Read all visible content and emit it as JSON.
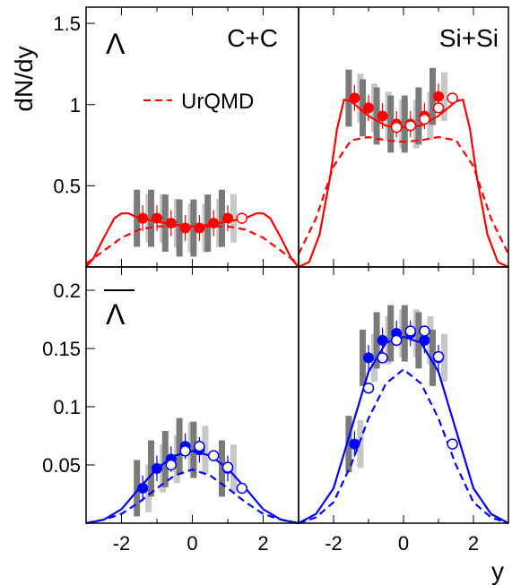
{
  "figure": {
    "y_axis_label": "dN/dy",
    "x_axis_label": "y",
    "panel_labels": {
      "cc": "C+C",
      "sisi": "Si+Si",
      "lambda": "Λ",
      "antilambda": "Λ",
      "legend_urqmd": "UrQMD"
    },
    "colors": {
      "lambda": "#ff0000",
      "antilambda": "#0000ff",
      "syst_dark": "#7a7a7a",
      "syst_light": "#c8c8c8"
    }
  },
  "chart_data": [
    {
      "id": "cc_lambda",
      "type": "scatter",
      "title": "C+C",
      "particle": "Lambda",
      "xlim": [
        -3,
        3
      ],
      "ylim": [
        0,
        1.6
      ],
      "yticks": [
        0.5,
        1,
        1.5
      ],
      "yticklabels": [
        "0.5",
        "1",
        "1.5"
      ],
      "filled": {
        "x": [
          -1.4,
          -1.0,
          -0.6,
          -0.2,
          0.2,
          0.6,
          1.0
        ],
        "y": [
          0.3,
          0.3,
          0.27,
          0.24,
          0.24,
          0.27,
          0.3
        ]
      },
      "open": {
        "x": [
          1.4
        ],
        "y": [
          0.3
        ]
      },
      "fit_solid": {
        "x": [
          -3.0,
          -2.8,
          -2.5,
          -2.2,
          -2.0,
          -1.8,
          -1.5,
          -1.0,
          -0.5,
          0.0,
          0.5,
          1.0,
          1.5,
          1.8,
          2.0,
          2.2,
          2.5,
          2.8,
          3.0
        ],
        "y": [
          0.0,
          0.05,
          0.18,
          0.3,
          0.33,
          0.33,
          0.3,
          0.28,
          0.26,
          0.25,
          0.26,
          0.28,
          0.3,
          0.33,
          0.33,
          0.3,
          0.18,
          0.05,
          0.0
        ]
      },
      "urqmd": {
        "x": [
          -3.0,
          -2.5,
          -2.0,
          -1.5,
          -1.0,
          -0.5,
          0.0,
          0.5,
          1.0,
          1.5,
          2.0,
          2.5,
          3.0
        ],
        "y": [
          0.02,
          0.1,
          0.18,
          0.23,
          0.25,
          0.25,
          0.25,
          0.25,
          0.25,
          0.23,
          0.18,
          0.1,
          0.02
        ]
      }
    },
    {
      "id": "sisi_lambda",
      "type": "scatter",
      "title": "Si+Si",
      "particle": "Lambda",
      "xlim": [
        -3,
        3
      ],
      "ylim": [
        0,
        1.6
      ],
      "filled": {
        "x": [
          -1.4,
          -1.0,
          -0.6,
          -0.2,
          0.2,
          0.6,
          1.0
        ],
        "y": [
          1.04,
          0.98,
          0.93,
          0.88,
          0.88,
          0.93,
          1.05
        ]
      },
      "open": {
        "x": [
          -0.2,
          0.2,
          0.6,
          1.0,
          1.4
        ],
        "y": [
          0.86,
          0.87,
          0.91,
          0.98,
          1.04
        ]
      },
      "fit_solid": {
        "x": [
          -3.0,
          -2.7,
          -2.4,
          -2.1,
          -1.9,
          -1.7,
          -1.5,
          -1.0,
          -0.5,
          0.0,
          0.5,
          1.0,
          1.5,
          1.7,
          1.9,
          2.1,
          2.4,
          2.7,
          3.0
        ],
        "y": [
          0.0,
          0.03,
          0.2,
          0.55,
          0.85,
          1.03,
          1.02,
          0.93,
          0.87,
          0.86,
          0.87,
          0.93,
          1.02,
          1.03,
          0.85,
          0.55,
          0.2,
          0.03,
          0.0
        ]
      },
      "urqmd": {
        "x": [
          -3.0,
          -2.5,
          -2.0,
          -1.5,
          -1.0,
          -0.5,
          0.0,
          0.5,
          1.0,
          1.5,
          2.0,
          2.5,
          3.0
        ],
        "y": [
          0.08,
          0.3,
          0.62,
          0.78,
          0.8,
          0.78,
          0.77,
          0.78,
          0.8,
          0.78,
          0.62,
          0.3,
          0.08
        ]
      }
    },
    {
      "id": "cc_antilambda",
      "type": "scatter",
      "title": "C+C",
      "particle": "anti-Lambda",
      "xlim": [
        -3,
        3
      ],
      "ylim": [
        0,
        0.22
      ],
      "yticks": [
        0.05,
        0.1,
        0.15,
        0.2
      ],
      "yticklabels": [
        "0.05",
        "0.1",
        "0.15",
        "0.2"
      ],
      "filled": {
        "x": [
          -1.4,
          -1.0,
          -0.6,
          -0.2,
          0.2,
          1.0
        ],
        "y": [
          0.03,
          0.047,
          0.055,
          0.066,
          0.063,
          0.047
        ]
      },
      "open": {
        "x": [
          -0.6,
          -0.2,
          0.2,
          0.6,
          1.0,
          1.4
        ],
        "y": [
          0.05,
          0.062,
          0.066,
          0.058,
          0.048,
          0.03
        ]
      },
      "fit_solid": {
        "x": [
          -3.0,
          -2.5,
          -2.0,
          -1.5,
          -1.0,
          -0.5,
          0.0,
          0.5,
          1.0,
          1.5,
          2.0,
          2.5,
          3.0
        ],
        "y": [
          0.0,
          0.003,
          0.012,
          0.03,
          0.047,
          0.058,
          0.062,
          0.058,
          0.047,
          0.03,
          0.012,
          0.003,
          0.0
        ]
      },
      "urqmd": {
        "x": [
          -3.0,
          -2.5,
          -2.0,
          -1.5,
          -1.0,
          -0.5,
          0.0,
          0.5,
          1.0,
          1.5,
          2.0,
          2.5,
          3.0
        ],
        "y": [
          0.0,
          0.003,
          0.008,
          0.018,
          0.03,
          0.041,
          0.046,
          0.041,
          0.03,
          0.018,
          0.008,
          0.003,
          0.0
        ]
      }
    },
    {
      "id": "sisi_antilambda",
      "type": "scatter",
      "title": "Si+Si",
      "particle": "anti-Lambda",
      "xlim": [
        -3,
        3
      ],
      "ylim": [
        0,
        0.22
      ],
      "filled": {
        "x": [
          -1.4,
          -1.0,
          -0.6,
          -0.2,
          0.2,
          0.6,
          1.0
        ],
        "y": [
          0.068,
          0.142,
          0.157,
          0.163,
          0.163,
          0.157,
          0.142
        ]
      },
      "open": {
        "x": [
          -1.0,
          -0.6,
          -0.2,
          0.2,
          0.6,
          1.0,
          1.4
        ],
        "y": [
          0.116,
          0.142,
          0.157,
          0.165,
          0.165,
          0.143,
          0.068
        ]
      },
      "fit_solid": {
        "x": [
          -3.0,
          -2.5,
          -2.0,
          -1.5,
          -1.0,
          -0.5,
          0.0,
          0.5,
          1.0,
          1.5,
          2.0,
          2.5,
          3.0
        ],
        "y": [
          0.0,
          0.008,
          0.03,
          0.08,
          0.13,
          0.155,
          0.16,
          0.155,
          0.13,
          0.08,
          0.03,
          0.008,
          0.0
        ]
      },
      "urqmd": {
        "x": [
          -3.0,
          -2.5,
          -2.0,
          -1.5,
          -1.0,
          -0.5,
          0.0,
          0.5,
          1.0,
          1.5,
          2.0,
          2.5,
          3.0
        ],
        "y": [
          0.0,
          0.005,
          0.018,
          0.05,
          0.09,
          0.12,
          0.132,
          0.12,
          0.09,
          0.05,
          0.018,
          0.005,
          0.0
        ]
      }
    }
  ],
  "x_axis": {
    "ticks": [
      -2,
      0,
      2
    ],
    "ticklabels": [
      "-2",
      "0",
      "2"
    ]
  }
}
